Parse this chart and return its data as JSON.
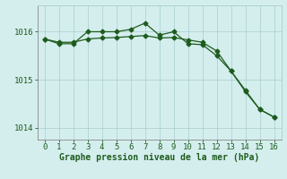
{
  "line1_x": [
    0,
    1,
    2,
    3,
    4,
    5,
    6,
    7,
    8,
    9,
    10,
    11,
    12,
    13,
    14,
    15,
    16
  ],
  "line1_y": [
    1015.85,
    1015.78,
    1015.78,
    1015.85,
    1015.87,
    1015.88,
    1015.9,
    1015.92,
    1015.87,
    1015.88,
    1015.83,
    1015.78,
    1015.6,
    1015.18,
    1014.75,
    1014.38,
    1014.22
  ],
  "line2_x": [
    0,
    1,
    2,
    3,
    4,
    5,
    6,
    7,
    8,
    9,
    10,
    11,
    12,
    13,
    14,
    15,
    16
  ],
  "line2_y": [
    1015.85,
    1015.75,
    1015.75,
    1016.0,
    1016.0,
    1016.0,
    1016.05,
    1016.18,
    1015.93,
    1016.0,
    1015.75,
    1015.73,
    1015.5,
    1015.18,
    1014.78,
    1014.38,
    1014.22
  ],
  "line_color": "#1e5c1e",
  "marker": "D",
  "marker_size": 2.5,
  "xlabel": "Graphe pression niveau de la mer (hPa)",
  "xlim": [
    -0.5,
    16.5
  ],
  "ylim": [
    1013.75,
    1016.55
  ],
  "yticks": [
    1014,
    1015,
    1016
  ],
  "xticks": [
    0,
    1,
    2,
    3,
    4,
    5,
    6,
    7,
    8,
    9,
    10,
    11,
    12,
    13,
    14,
    15,
    16
  ],
  "background_color": "#d4eeee",
  "grid_color": "#aacccc",
  "tick_color": "#1e5c1e",
  "label_color": "#1e5c1e",
  "xlabel_fontsize": 7.0,
  "tick_fontsize": 6.5,
  "spine_color": "#888888"
}
